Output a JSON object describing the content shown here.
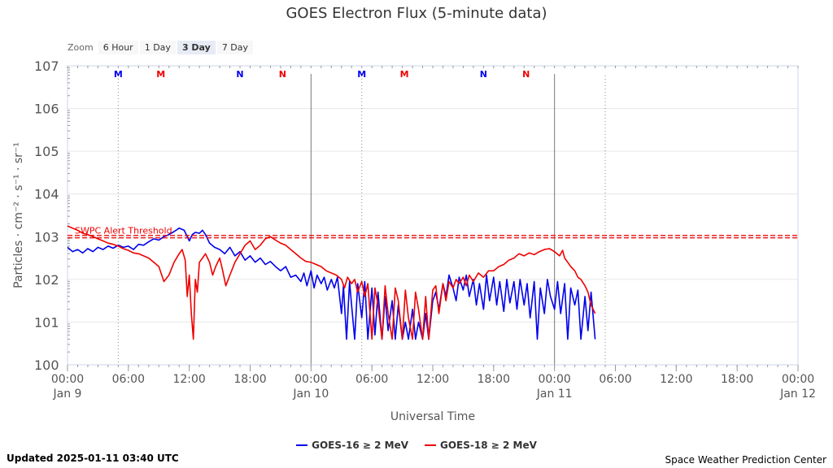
{
  "page": {
    "title": "GOES Electron Flux (5-minute data)",
    "updated": "Updated 2025-01-11 03:40 UTC",
    "credit": "Space Weather Prediction Center"
  },
  "zoom": {
    "label": "Zoom",
    "buttons": [
      "6 Hour",
      "1 Day",
      "3 Day",
      "7 Day"
    ],
    "active": "3 Day"
  },
  "colors": {
    "goes16": "#0000ee",
    "goes18": "#ee0000",
    "threshold": "#ee0000",
    "grid": "#e6e6e6",
    "axis": "#ccd6eb"
  },
  "chart_data": {
    "type": "line",
    "title": "GOES Electron Flux (5-minute data)",
    "xlabel": "Universal Time",
    "ylabel": "Particles · cm⁻² · s⁻¹ · sr⁻¹",
    "yscale": "log",
    "ylim_exp": [
      0,
      7
    ],
    "xlim_hours": [
      0,
      72
    ],
    "y_ticks": [
      {
        "base": "10",
        "exp": "0"
      },
      {
        "base": "10",
        "exp": "1"
      },
      {
        "base": "10",
        "exp": "2"
      },
      {
        "base": "10",
        "exp": "3"
      },
      {
        "base": "10",
        "exp": "4"
      },
      {
        "base": "10",
        "exp": "5"
      },
      {
        "base": "10",
        "exp": "6"
      },
      {
        "base": "10",
        "exp": "7"
      }
    ],
    "x_ticks": [
      {
        "h": 0,
        "time": "00:00",
        "date": "Jan 9"
      },
      {
        "h": 6,
        "time": "06:00",
        "date": ""
      },
      {
        "h": 12,
        "time": "12:00",
        "date": ""
      },
      {
        "h": 18,
        "time": "18:00",
        "date": ""
      },
      {
        "h": 24,
        "time": "00:00",
        "date": "Jan 10"
      },
      {
        "h": 30,
        "time": "06:00",
        "date": ""
      },
      {
        "h": 36,
        "time": "12:00",
        "date": ""
      },
      {
        "h": 42,
        "time": "18:00",
        "date": ""
      },
      {
        "h": 48,
        "time": "00:00",
        "date": "Jan 11"
      },
      {
        "h": 54,
        "time": "06:00",
        "date": ""
      },
      {
        "h": 60,
        "time": "12:00",
        "date": ""
      },
      {
        "h": 66,
        "time": "18:00",
        "date": ""
      },
      {
        "h": 72,
        "time": "00:00",
        "date": "Jan 12"
      }
    ],
    "day_lines_hours": [
      24,
      48
    ],
    "threshold": {
      "label": "SWPC Alert Threshold",
      "value_exp": 3.0
    },
    "markers": [
      {
        "h": 5.0,
        "label": "M",
        "color": "#0000ee"
      },
      {
        "h": 9.2,
        "label": "M",
        "color": "#ee0000"
      },
      {
        "h": 17.0,
        "label": "N",
        "color": "#0000ee"
      },
      {
        "h": 21.2,
        "label": "N",
        "color": "#ee0000"
      },
      {
        "h": 29.0,
        "label": "M",
        "color": "#0000ee"
      },
      {
        "h": 33.2,
        "label": "M",
        "color": "#ee0000"
      },
      {
        "h": 41.0,
        "label": "N",
        "color": "#0000ee"
      },
      {
        "h": 45.2,
        "label": "N",
        "color": "#ee0000"
      }
    ],
    "marker_lines_hours": [
      5.0,
      29.0,
      53.0
    ],
    "series": [
      {
        "name": "GOES-16 ≥ 2 MeV",
        "color": "#0000ee",
        "points": [
          [
            0.0,
            2.75
          ],
          [
            0.5,
            2.65
          ],
          [
            1.0,
            2.7
          ],
          [
            1.5,
            2.62
          ],
          [
            2.0,
            2.72
          ],
          [
            2.5,
            2.65
          ],
          [
            3.0,
            2.75
          ],
          [
            3.5,
            2.7
          ],
          [
            4.0,
            2.78
          ],
          [
            4.5,
            2.73
          ],
          [
            5.0,
            2.8
          ],
          [
            5.5,
            2.75
          ],
          [
            6.0,
            2.78
          ],
          [
            6.5,
            2.7
          ],
          [
            7.0,
            2.82
          ],
          [
            7.5,
            2.8
          ],
          [
            8.0,
            2.88
          ],
          [
            8.5,
            2.95
          ],
          [
            9.0,
            2.92
          ],
          [
            9.5,
            3.0
          ],
          [
            10.0,
            3.05
          ],
          [
            10.5,
            3.12
          ],
          [
            11.0,
            3.2
          ],
          [
            11.5,
            3.15
          ],
          [
            12.0,
            2.9
          ],
          [
            12.3,
            3.05
          ],
          [
            12.6,
            3.1
          ],
          [
            13.0,
            3.08
          ],
          [
            13.3,
            3.15
          ],
          [
            13.6,
            3.05
          ],
          [
            14.0,
            2.85
          ],
          [
            14.5,
            2.75
          ],
          [
            15.0,
            2.7
          ],
          [
            15.5,
            2.6
          ],
          [
            16.0,
            2.75
          ],
          [
            16.5,
            2.55
          ],
          [
            17.0,
            2.65
          ],
          [
            17.5,
            2.45
          ],
          [
            18.0,
            2.55
          ],
          [
            18.5,
            2.4
          ],
          [
            19.0,
            2.5
          ],
          [
            19.5,
            2.35
          ],
          [
            20.0,
            2.42
          ],
          [
            20.5,
            2.3
          ],
          [
            21.0,
            2.2
          ],
          [
            21.5,
            2.3
          ],
          [
            22.0,
            2.05
          ],
          [
            22.5,
            2.1
          ],
          [
            23.0,
            1.95
          ],
          [
            23.3,
            2.15
          ],
          [
            23.6,
            1.85
          ],
          [
            24.0,
            2.2
          ],
          [
            24.3,
            1.8
          ],
          [
            24.6,
            2.1
          ],
          [
            25.0,
            1.9
          ],
          [
            25.3,
            2.05
          ],
          [
            25.6,
            1.75
          ],
          [
            26.0,
            2.0
          ],
          [
            26.3,
            1.8
          ],
          [
            26.6,
            2.05
          ],
          [
            27.0,
            1.2
          ],
          [
            27.2,
            1.85
          ],
          [
            27.5,
            0.6
          ],
          [
            27.8,
            1.95
          ],
          [
            28.0,
            1.4
          ],
          [
            28.3,
            0.6
          ],
          [
            28.6,
            1.9
          ],
          [
            29.0,
            1.1
          ],
          [
            29.3,
            1.95
          ],
          [
            29.6,
            0.6
          ],
          [
            30.0,
            1.8
          ],
          [
            30.3,
            0.7
          ],
          [
            30.6,
            1.7
          ],
          [
            31.0,
            0.6
          ],
          [
            31.3,
            1.6
          ],
          [
            31.6,
            0.8
          ],
          [
            32.0,
            1.5
          ],
          [
            32.3,
            0.6
          ],
          [
            32.6,
            1.4
          ],
          [
            33.0,
            0.6
          ],
          [
            33.3,
            1.0
          ],
          [
            33.6,
            0.6
          ],
          [
            34.0,
            1.3
          ],
          [
            34.3,
            0.6
          ],
          [
            34.6,
            1.0
          ],
          [
            35.0,
            0.6
          ],
          [
            35.3,
            1.2
          ],
          [
            35.6,
            0.6
          ],
          [
            36.0,
            1.5
          ],
          [
            36.3,
            1.7
          ],
          [
            36.6,
            1.3
          ],
          [
            37.0,
            1.9
          ],
          [
            37.3,
            1.6
          ],
          [
            37.6,
            2.1
          ],
          [
            38.0,
            1.8
          ],
          [
            38.3,
            1.5
          ],
          [
            38.6,
            2.05
          ],
          [
            39.0,
            1.75
          ],
          [
            39.3,
            2.1
          ],
          [
            39.6,
            1.6
          ],
          [
            40.0,
            2.0
          ],
          [
            40.3,
            1.4
          ],
          [
            40.6,
            1.9
          ],
          [
            41.0,
            1.3
          ],
          [
            41.3,
            2.1
          ],
          [
            41.6,
            1.5
          ],
          [
            42.0,
            2.05
          ],
          [
            42.3,
            1.4
          ],
          [
            42.6,
            1.95
          ],
          [
            43.0,
            1.25
          ],
          [
            43.3,
            2.0
          ],
          [
            43.6,
            1.45
          ],
          [
            44.0,
            1.95
          ],
          [
            44.3,
            1.3
          ],
          [
            44.6,
            2.0
          ],
          [
            45.0,
            1.4
          ],
          [
            45.3,
            1.9
          ],
          [
            45.6,
            1.1
          ],
          [
            46.0,
            1.95
          ],
          [
            46.3,
            0.6
          ],
          [
            46.6,
            1.8
          ],
          [
            47.0,
            1.2
          ],
          [
            47.3,
            2.0
          ],
          [
            47.6,
            1.6
          ],
          [
            48.0,
            1.3
          ],
          [
            48.3,
            1.95
          ],
          [
            48.6,
            1.2
          ],
          [
            49.0,
            1.9
          ],
          [
            49.3,
            0.6
          ],
          [
            49.6,
            1.8
          ],
          [
            50.0,
            1.4
          ],
          [
            50.3,
            1.75
          ],
          [
            50.6,
            0.6
          ],
          [
            51.0,
            1.6
          ],
          [
            51.3,
            0.8
          ],
          [
            51.6,
            1.7
          ],
          [
            52.0,
            0.6
          ]
        ]
      },
      {
        "name": "GOES-18 ≥ 2 MeV",
        "color": "#ee0000",
        "points": [
          [
            0.0,
            3.25
          ],
          [
            0.5,
            3.2
          ],
          [
            1.0,
            3.15
          ],
          [
            1.5,
            3.08
          ],
          [
            2.0,
            3.05
          ],
          [
            2.5,
            3.0
          ],
          [
            3.0,
            2.95
          ],
          [
            3.5,
            2.9
          ],
          [
            4.0,
            2.85
          ],
          [
            4.5,
            2.82
          ],
          [
            5.0,
            2.78
          ],
          [
            5.5,
            2.72
          ],
          [
            6.0,
            2.68
          ],
          [
            6.5,
            2.62
          ],
          [
            7.0,
            2.6
          ],
          [
            7.5,
            2.55
          ],
          [
            8.0,
            2.5
          ],
          [
            8.5,
            2.4
          ],
          [
            9.0,
            2.3
          ],
          [
            9.5,
            1.95
          ],
          [
            10.0,
            2.1
          ],
          [
            10.5,
            2.4
          ],
          [
            11.0,
            2.6
          ],
          [
            11.3,
            2.7
          ],
          [
            11.6,
            2.45
          ],
          [
            11.8,
            1.6
          ],
          [
            12.0,
            2.1
          ],
          [
            12.2,
            1.2
          ],
          [
            12.4,
            0.6
          ],
          [
            12.6,
            2.0
          ],
          [
            12.8,
            1.7
          ],
          [
            13.0,
            2.4
          ],
          [
            13.3,
            2.5
          ],
          [
            13.6,
            2.6
          ],
          [
            14.0,
            2.4
          ],
          [
            14.3,
            2.1
          ],
          [
            14.6,
            2.3
          ],
          [
            15.0,
            2.5
          ],
          [
            15.3,
            2.2
          ],
          [
            15.6,
            1.85
          ],
          [
            16.0,
            2.1
          ],
          [
            16.5,
            2.4
          ],
          [
            17.0,
            2.6
          ],
          [
            17.5,
            2.8
          ],
          [
            18.0,
            2.9
          ],
          [
            18.5,
            2.7
          ],
          [
            19.0,
            2.8
          ],
          [
            19.5,
            2.95
          ],
          [
            20.0,
            3.0
          ],
          [
            20.5,
            2.92
          ],
          [
            21.0,
            2.85
          ],
          [
            21.5,
            2.8
          ],
          [
            22.0,
            2.7
          ],
          [
            22.5,
            2.6
          ],
          [
            23.0,
            2.5
          ],
          [
            23.5,
            2.42
          ],
          [
            24.0,
            2.4
          ],
          [
            24.5,
            2.35
          ],
          [
            25.0,
            2.3
          ],
          [
            25.5,
            2.2
          ],
          [
            26.0,
            2.15
          ],
          [
            26.5,
            2.1
          ],
          [
            27.0,
            2.0
          ],
          [
            27.3,
            1.8
          ],
          [
            27.6,
            2.05
          ],
          [
            28.0,
            1.9
          ],
          [
            28.3,
            2.0
          ],
          [
            28.6,
            1.7
          ],
          [
            29.0,
            1.95
          ],
          [
            29.3,
            1.6
          ],
          [
            29.6,
            1.9
          ],
          [
            30.0,
            0.6
          ],
          [
            30.3,
            1.8
          ],
          [
            30.6,
            1.4
          ],
          [
            31.0,
            0.6
          ],
          [
            31.3,
            1.85
          ],
          [
            31.6,
            1.2
          ],
          [
            32.0,
            0.6
          ],
          [
            32.3,
            1.8
          ],
          [
            32.6,
            1.5
          ],
          [
            33.0,
            0.6
          ],
          [
            33.3,
            1.75
          ],
          [
            33.6,
            1.1
          ],
          [
            34.0,
            0.6
          ],
          [
            34.3,
            1.7
          ],
          [
            34.6,
            1.3
          ],
          [
            35.0,
            0.6
          ],
          [
            35.3,
            1.6
          ],
          [
            35.6,
            0.6
          ],
          [
            36.0,
            1.75
          ],
          [
            36.3,
            1.85
          ],
          [
            36.6,
            1.2
          ],
          [
            37.0,
            1.9
          ],
          [
            37.3,
            1.5
          ],
          [
            37.6,
            1.95
          ],
          [
            38.0,
            1.8
          ],
          [
            38.3,
            2.0
          ],
          [
            38.6,
            1.9
          ],
          [
            39.0,
            2.05
          ],
          [
            39.3,
            1.85
          ],
          [
            39.6,
            2.1
          ],
          [
            40.0,
            1.95
          ],
          [
            40.5,
            2.15
          ],
          [
            41.0,
            2.05
          ],
          [
            41.5,
            2.2
          ],
          [
            42.0,
            2.2
          ],
          [
            42.5,
            2.3
          ],
          [
            43.0,
            2.35
          ],
          [
            43.5,
            2.45
          ],
          [
            44.0,
            2.5
          ],
          [
            44.5,
            2.6
          ],
          [
            45.0,
            2.55
          ],
          [
            45.5,
            2.62
          ],
          [
            46.0,
            2.58
          ],
          [
            46.5,
            2.65
          ],
          [
            47.0,
            2.7
          ],
          [
            47.5,
            2.72
          ],
          [
            48.0,
            2.65
          ],
          [
            48.5,
            2.55
          ],
          [
            48.8,
            2.68
          ],
          [
            49.0,
            2.5
          ],
          [
            49.3,
            2.4
          ],
          [
            49.6,
            2.3
          ],
          [
            50.0,
            2.2
          ],
          [
            50.3,
            2.05
          ],
          [
            50.6,
            2.0
          ],
          [
            51.0,
            1.85
          ],
          [
            51.3,
            1.7
          ],
          [
            51.6,
            1.4
          ],
          [
            52.0,
            1.2
          ]
        ]
      }
    ]
  }
}
